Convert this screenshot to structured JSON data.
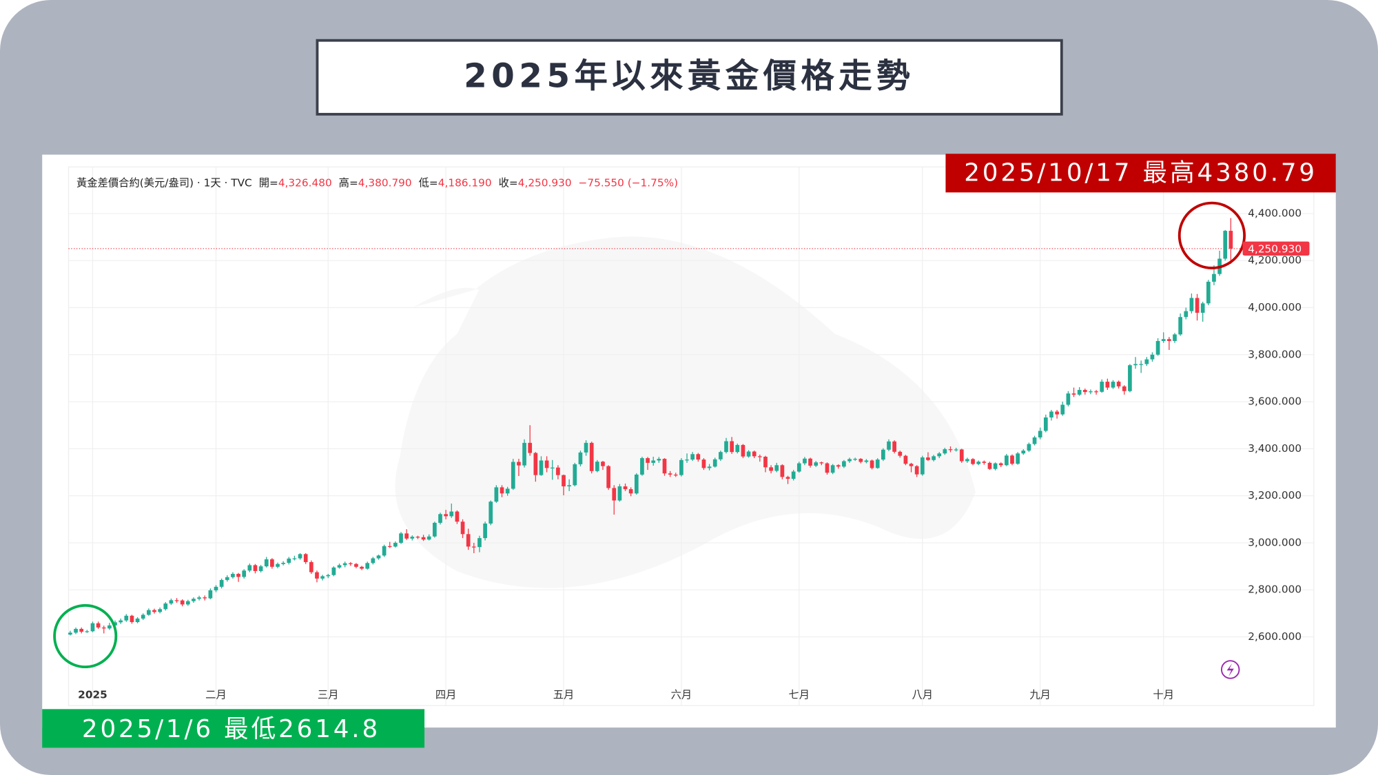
{
  "chart_data": {
    "type": "candlestick",
    "title": "2025年以來黃金價格走勢",
    "header": {
      "symbol": "黃金差價合約(美元/盎司) · 1天 · TVC",
      "open_label": "開=",
      "open": "4,326.480",
      "high_label": "高=",
      "high": "4,380.790",
      "low_label": "低=",
      "low": "4,186.190",
      "close_label": "收=",
      "close": "4,250.930",
      "change": "−75.550 (−1.75%)"
    },
    "annotations": {
      "high": "2025/10/17 最高4380.79",
      "low": "2025/1/6 最低2614.8"
    },
    "last_price": {
      "value": 4250.93,
      "label": "4,250.930"
    },
    "up_color": "#22ab94",
    "down_color": "#f23645",
    "grid": true,
    "xlim": [
      -0.3,
      208.8
    ],
    "xticks": [
      {
        "value": 4,
        "label": "2025"
      },
      {
        "value": 26,
        "label": "二月"
      },
      {
        "value": 46,
        "label": "三月"
      },
      {
        "value": 67,
        "label": "四月"
      },
      {
        "value": 88,
        "label": "五月"
      },
      {
        "value": 109,
        "label": "六月"
      },
      {
        "value": 130,
        "label": "七月"
      },
      {
        "value": 152,
        "label": "八月"
      },
      {
        "value": 173,
        "label": "九月"
      },
      {
        "value": 195,
        "label": "十月"
      }
    ],
    "ylim": [
      2308,
      4598
    ],
    "yticks": [
      {
        "value": 2600,
        "label": "2,600.000"
      },
      {
        "value": 2800,
        "label": "2,800.000"
      },
      {
        "value": 3000,
        "label": "3,000.000"
      },
      {
        "value": 3200,
        "label": "3,200.000"
      },
      {
        "value": 3400,
        "label": "3,400.000"
      },
      {
        "value": 3600,
        "label": "3,600.000"
      },
      {
        "value": 3800,
        "label": "3,800.000"
      },
      {
        "value": 4000,
        "label": "4,000.000"
      },
      {
        "value": 4200,
        "label": "4,200.000"
      },
      {
        "value": 4400,
        "label": "4,400.000"
      }
    ],
    "ohlc": [
      [
        2610,
        2626,
        2606,
        2618
      ],
      [
        2618,
        2640,
        2612,
        2634
      ],
      [
        2634,
        2640,
        2615,
        2622
      ],
      [
        2622,
        2630,
        2617,
        2624
      ],
      [
        2624,
        2665,
        2620,
        2658
      ],
      [
        2658,
        2665,
        2634,
        2640
      ],
      [
        2640,
        2648,
        2614.8,
        2636
      ],
      [
        2636,
        2660,
        2630,
        2649
      ],
      [
        2649,
        2670,
        2645,
        2662
      ],
      [
        2662,
        2678,
        2655,
        2670
      ],
      [
        2670,
        2697,
        2664,
        2690
      ],
      [
        2690,
        2694,
        2656,
        2663
      ],
      [
        2663,
        2684,
        2658,
        2678
      ],
      [
        2678,
        2700,
        2672,
        2694
      ],
      [
        2694,
        2721,
        2690,
        2714
      ],
      [
        2714,
        2720,
        2699,
        2706
      ],
      [
        2706,
        2725,
        2700,
        2718
      ],
      [
        2718,
        2748,
        2712,
        2742
      ],
      [
        2742,
        2763,
        2736,
        2756
      ],
      [
        2756,
        2765,
        2745,
        2755
      ],
      [
        2755,
        2760,
        2730,
        2738
      ],
      [
        2738,
        2758,
        2732,
        2752
      ],
      [
        2752,
        2768,
        2745,
        2762
      ],
      [
        2762,
        2775,
        2755,
        2768
      ],
      [
        2768,
        2776,
        2755,
        2764
      ],
      [
        2764,
        2806,
        2760,
        2798
      ],
      [
        2798,
        2820,
        2790,
        2813
      ],
      [
        2813,
        2848,
        2806,
        2842
      ],
      [
        2842,
        2862,
        2835,
        2854
      ],
      [
        2854,
        2875,
        2848,
        2868
      ],
      [
        2868,
        2872,
        2834,
        2855
      ],
      [
        2855,
        2888,
        2848,
        2882
      ],
      [
        2882,
        2912,
        2875,
        2905
      ],
      [
        2905,
        2910,
        2870,
        2880
      ],
      [
        2880,
        2906,
        2874,
        2900
      ],
      [
        2900,
        2940,
        2895,
        2930
      ],
      [
        2930,
        2935,
        2890,
        2898
      ],
      [
        2898,
        2916,
        2892,
        2910
      ],
      [
        2910,
        2922,
        2904,
        2915
      ],
      [
        2915,
        2940,
        2908,
        2933
      ],
      [
        2933,
        2945,
        2925,
        2934
      ],
      [
        2934,
        2956,
        2928,
        2952
      ],
      [
        2952,
        2956,
        2910,
        2918
      ],
      [
        2918,
        2925,
        2868,
        2875
      ],
      [
        2875,
        2882,
        2832,
        2848
      ],
      [
        2848,
        2864,
        2840,
        2858
      ],
      [
        2858,
        2868,
        2850,
        2863
      ],
      [
        2863,
        2900,
        2858,
        2895
      ],
      [
        2895,
        2912,
        2890,
        2905
      ],
      [
        2905,
        2920,
        2896,
        2913
      ],
      [
        2913,
        2918,
        2902,
        2910
      ],
      [
        2910,
        2914,
        2892,
        2898
      ],
      [
        2898,
        2902,
        2884,
        2890
      ],
      [
        2890,
        2920,
        2886,
        2914
      ],
      [
        2914,
        2940,
        2908,
        2934
      ],
      [
        2934,
        2950,
        2928,
        2946
      ],
      [
        2946,
        2992,
        2940,
        2986
      ],
      [
        2986,
        3004,
        2978,
        2984
      ],
      [
        2984,
        3006,
        2980,
        3000
      ],
      [
        3000,
        3046,
        2995,
        3040
      ],
      [
        3040,
        3058,
        3012,
        3018
      ],
      [
        3018,
        3032,
        3010,
        3026
      ],
      [
        3026,
        3030,
        3016,
        3024
      ],
      [
        3024,
        3034,
        3008,
        3014
      ],
      [
        3014,
        3036,
        3010,
        3027
      ],
      [
        3027,
        3090,
        3022,
        3085
      ],
      [
        3085,
        3128,
        3078,
        3122
      ],
      [
        3122,
        3140,
        3100,
        3113
      ],
      [
        3113,
        3167,
        3106,
        3133
      ],
      [
        3133,
        3138,
        3080,
        3090
      ],
      [
        3090,
        3100,
        3020,
        3037
      ],
      [
        3037,
        3060,
        2970,
        2984
      ],
      [
        2984,
        3000,
        2956,
        2982
      ],
      [
        2982,
        3030,
        2960,
        3020
      ],
      [
        3020,
        3090,
        3010,
        3082
      ],
      [
        3082,
        3180,
        3075,
        3175
      ],
      [
        3175,
        3245,
        3170,
        3236
      ],
      [
        3236,
        3245,
        3194,
        3210
      ],
      [
        3210,
        3238,
        3200,
        3230
      ],
      [
        3230,
        3357,
        3225,
        3344
      ],
      [
        3344,
        3357,
        3284,
        3329
      ],
      [
        3329,
        3440,
        3320,
        3425
      ],
      [
        3425,
        3500,
        3370,
        3382
      ],
      [
        3382,
        3386,
        3260,
        3288
      ],
      [
        3288,
        3368,
        3285,
        3350
      ],
      [
        3350,
        3368,
        3300,
        3318
      ],
      [
        3318,
        3352,
        3268,
        3320
      ],
      [
        3320,
        3330,
        3270,
        3288
      ],
      [
        3288,
        3290,
        3202,
        3240
      ],
      [
        3240,
        3270,
        3220,
        3245
      ],
      [
        3245,
        3340,
        3240,
        3334
      ],
      [
        3334,
        3392,
        3325,
        3384
      ],
      [
        3384,
        3436,
        3370,
        3425
      ],
      [
        3425,
        3430,
        3295,
        3305
      ],
      [
        3305,
        3352,
        3300,
        3345
      ],
      [
        3345,
        3348,
        3310,
        3326
      ],
      [
        3326,
        3330,
        3225,
        3233
      ],
      [
        3233,
        3245,
        3120,
        3180
      ],
      [
        3180,
        3250,
        3175,
        3240
      ],
      [
        3240,
        3252,
        3220,
        3228
      ],
      [
        3228,
        3236,
        3198,
        3210
      ],
      [
        3210,
        3296,
        3205,
        3290
      ],
      [
        3290,
        3366,
        3285,
        3360
      ],
      [
        3360,
        3365,
        3310,
        3340
      ],
      [
        3340,
        3366,
        3328,
        3350
      ],
      [
        3350,
        3365,
        3340,
        3357
      ],
      [
        3357,
        3360,
        3285,
        3295
      ],
      [
        3295,
        3305,
        3280,
        3290
      ],
      [
        3290,
        3298,
        3280,
        3288
      ],
      [
        3288,
        3360,
        3282,
        3352
      ],
      [
        3352,
        3380,
        3340,
        3354
      ],
      [
        3354,
        3386,
        3348,
        3377
      ],
      [
        3377,
        3382,
        3345,
        3354
      ],
      [
        3354,
        3360,
        3310,
        3318
      ],
      [
        3318,
        3335,
        3308,
        3324
      ],
      [
        3324,
        3362,
        3320,
        3355
      ],
      [
        3355,
        3392,
        3348,
        3386
      ],
      [
        3386,
        3446,
        3380,
        3432
      ],
      [
        3432,
        3450,
        3378,
        3386
      ],
      [
        3386,
        3422,
        3380,
        3416
      ],
      [
        3416,
        3420,
        3360,
        3367
      ],
      [
        3367,
        3394,
        3362,
        3388
      ],
      [
        3388,
        3392,
        3360,
        3368
      ],
      [
        3368,
        3375,
        3345,
        3366
      ],
      [
        3366,
        3370,
        3300,
        3321
      ],
      [
        3321,
        3330,
        3295,
        3306
      ],
      [
        3306,
        3340,
        3300,
        3330
      ],
      [
        3330,
        3334,
        3270,
        3280
      ],
      [
        3280,
        3285,
        3250,
        3272
      ],
      [
        3272,
        3310,
        3265,
        3303
      ],
      [
        3303,
        3345,
        3298,
        3338
      ],
      [
        3338,
        3365,
        3330,
        3358
      ],
      [
        3358,
        3362,
        3320,
        3328
      ],
      [
        3328,
        3348,
        3322,
        3342
      ],
      [
        3342,
        3345,
        3330,
        3338
      ],
      [
        3338,
        3342,
        3290,
        3298
      ],
      [
        3298,
        3335,
        3292,
        3330
      ],
      [
        3330,
        3334,
        3315,
        3324
      ],
      [
        3324,
        3352,
        3318,
        3347
      ],
      [
        3347,
        3362,
        3340,
        3356
      ],
      [
        3356,
        3362,
        3348,
        3357
      ],
      [
        3357,
        3360,
        3338,
        3344
      ],
      [
        3344,
        3356,
        3338,
        3350
      ],
      [
        3350,
        3354,
        3312,
        3318
      ],
      [
        3318,
        3360,
        3315,
        3354
      ],
      [
        3354,
        3402,
        3348,
        3396
      ],
      [
        3396,
        3440,
        3390,
        3431
      ],
      [
        3431,
        3436,
        3380,
        3387
      ],
      [
        3387,
        3392,
        3362,
        3370
      ],
      [
        3370,
        3374,
        3330,
        3336
      ],
      [
        3336,
        3340,
        3300,
        3326
      ],
      [
        3326,
        3330,
        3280,
        3291
      ],
      [
        3291,
        3370,
        3285,
        3363
      ],
      [
        3363,
        3385,
        3348,
        3352
      ],
      [
        3352,
        3374,
        3346,
        3368
      ],
      [
        3368,
        3386,
        3360,
        3380
      ],
      [
        3380,
        3404,
        3374,
        3398
      ],
      [
        3398,
        3410,
        3385,
        3396
      ],
      [
        3396,
        3404,
        3388,
        3397
      ],
      [
        3397,
        3400,
        3340,
        3347
      ],
      [
        3347,
        3362,
        3340,
        3356
      ],
      [
        3356,
        3360,
        3330,
        3335
      ],
      [
        3335,
        3350,
        3330,
        3345
      ],
      [
        3345,
        3350,
        3332,
        3340
      ],
      [
        3340,
        3345,
        3310,
        3314
      ],
      [
        3314,
        3342,
        3308,
        3338
      ],
      [
        3338,
        3342,
        3322,
        3330
      ],
      [
        3330,
        3378,
        3326,
        3371
      ],
      [
        3371,
        3376,
        3330,
        3336
      ],
      [
        3336,
        3386,
        3332,
        3380
      ],
      [
        3380,
        3398,
        3374,
        3392
      ],
      [
        3392,
        3426,
        3386,
        3420
      ],
      [
        3420,
        3455,
        3414,
        3448
      ],
      [
        3448,
        3490,
        3440,
        3476
      ],
      [
        3476,
        3545,
        3470,
        3533
      ],
      [
        3533,
        3565,
        3520,
        3558
      ],
      [
        3558,
        3565,
        3528,
        3546
      ],
      [
        3546,
        3600,
        3540,
        3587
      ],
      [
        3587,
        3645,
        3580,
        3635
      ],
      [
        3635,
        3660,
        3620,
        3630
      ],
      [
        3630,
        3662,
        3625,
        3650
      ],
      [
        3650,
        3656,
        3630,
        3641
      ],
      [
        3641,
        3652,
        3632,
        3644
      ],
      [
        3644,
        3650,
        3630,
        3642
      ],
      [
        3642,
        3695,
        3638,
        3685
      ],
      [
        3685,
        3698,
        3650,
        3660
      ],
      [
        3660,
        3692,
        3654,
        3685
      ],
      [
        3685,
        3690,
        3656,
        3665
      ],
      [
        3665,
        3670,
        3630,
        3645
      ],
      [
        3645,
        3760,
        3640,
        3755
      ],
      [
        3755,
        3790,
        3740,
        3760
      ],
      [
        3760,
        3775,
        3722,
        3760
      ],
      [
        3760,
        3790,
        3752,
        3780
      ],
      [
        3780,
        3810,
        3770,
        3800
      ],
      [
        3800,
        3870,
        3795,
        3858
      ],
      [
        3858,
        3895,
        3850,
        3866
      ],
      [
        3866,
        3875,
        3820,
        3858
      ],
      [
        3858,
        3892,
        3850,
        3886
      ],
      [
        3886,
        3975,
        3880,
        3960
      ],
      [
        3960,
        4000,
        3950,
        3985
      ],
      [
        3985,
        4060,
        3975,
        4041
      ],
      [
        4041,
        4058,
        3945,
        3978
      ],
      [
        3978,
        4025,
        3940,
        4018
      ],
      [
        4018,
        4118,
        4010,
        4110
      ],
      [
        4110,
        4180,
        4095,
        4143
      ],
      [
        4143,
        4242,
        4135,
        4208
      ],
      [
        4208,
        4330,
        4200,
        4326.48
      ],
      [
        4326.48,
        4380.79,
        4186.19,
        4250.93
      ]
    ]
  }
}
